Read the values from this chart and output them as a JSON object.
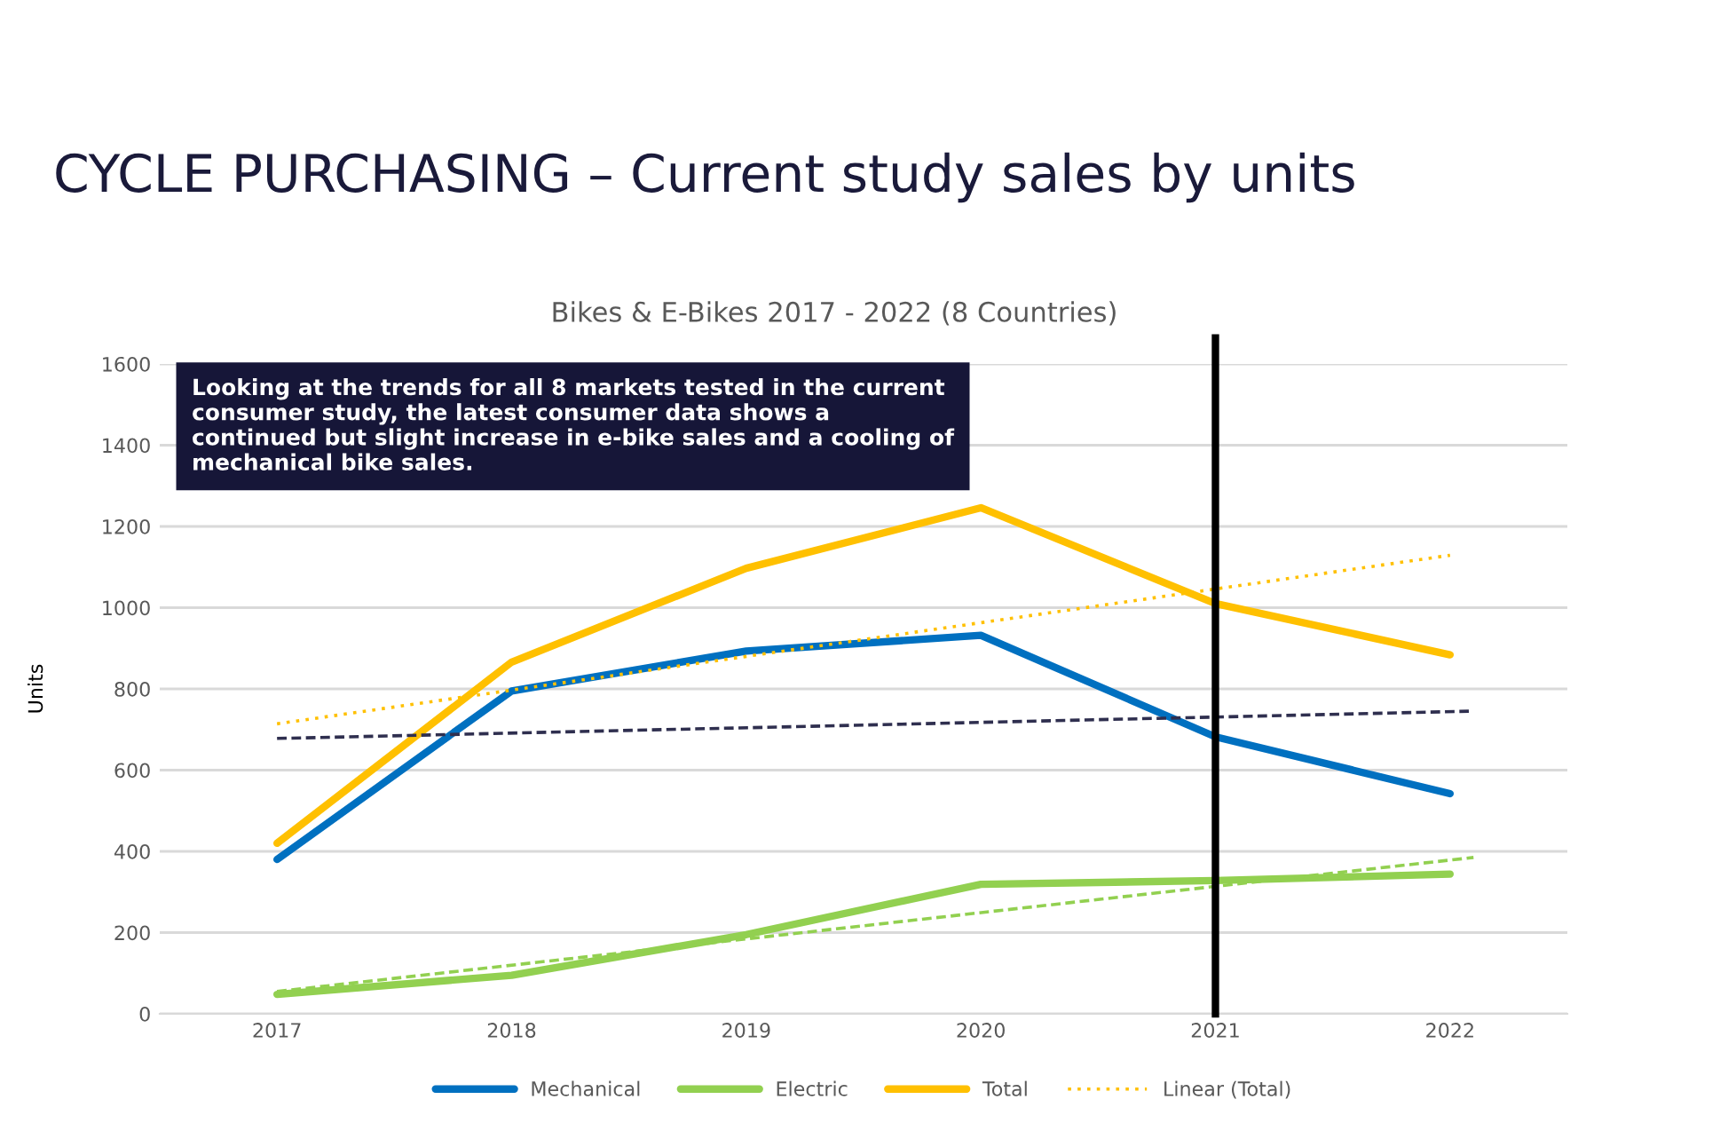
{
  "chart_data": {
    "type": "line",
    "title": "CYCLE PURCHASING – Current study sales by units",
    "subtitle": "Bikes & E-Bikes 2017 - 2022 (8 Countries)",
    "ylabel": "Units",
    "x": [
      2017,
      2018,
      2019,
      2020,
      2021,
      2022
    ],
    "series": [
      {
        "name": "Mechanical",
        "color": "#0070c0",
        "values": [
          380,
          795,
          893,
          932,
          682,
          542
        ]
      },
      {
        "name": "Electric",
        "color": "#92d050",
        "values": [
          48,
          95,
          195,
          319,
          328,
          344
        ]
      },
      {
        "name": "Total",
        "color": "#ffc000",
        "values": [
          420,
          866,
          1097,
          1246,
          1010,
          884
        ]
      },
      {
        "name": "Linear (Total)",
        "type": "line",
        "color": "#ffc000",
        "line_style": "dotted",
        "x": [
          2017,
          2022
        ],
        "values": [
          714,
          1129
        ]
      },
      {
        "type": "line",
        "color": "#2f2f4f",
        "line_style": "dashed",
        "x": [
          2017,
          2022.08
        ],
        "values": [
          678,
          745
        ]
      },
      {
        "type": "line",
        "color": "#92d050",
        "line_style": "dashed",
        "x": [
          2017,
          2022.1
        ],
        "values": [
          55,
          385
        ]
      }
    ],
    "xlim": [
      2016.5,
      2022.5
    ],
    "xticks": [
      2017,
      2018,
      2019,
      2020,
      2021,
      2022
    ],
    "ylim": [
      0,
      1600
    ],
    "yticks": [
      0,
      200,
      400,
      600,
      800,
      1000,
      1200,
      1400,
      1600
    ],
    "ref_lines": [
      {
        "axis": "x",
        "value": 2021,
        "color": "#000000"
      }
    ],
    "annotations": [
      "Looking at the trends for all 8 markets tested in the current consumer study, the latest consumer data shows a continued but slight increase in e-bike sales and a cooling of mechanical bike sales."
    ],
    "grid": "y",
    "legend": "bottom",
    "marker": "none",
    "line_style": "solid"
  }
}
